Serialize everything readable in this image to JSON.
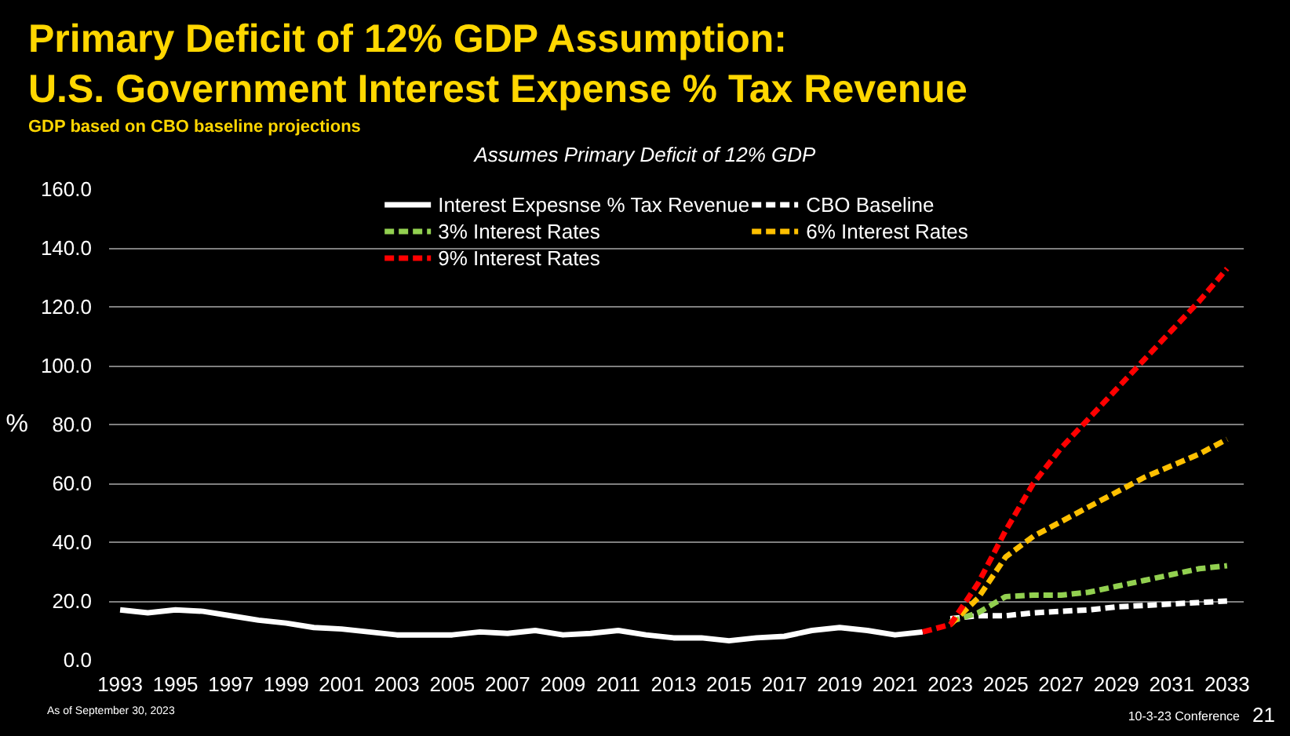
{
  "chart_data": {
    "type": "line",
    "title": "Primary Deficit of 12% GDP Assumption:",
    "subtitle": "U.S. Government Interest Expense % Tax Revenue",
    "ylabel": "%",
    "annotations": [
      "GDP based on CBO baseline projections",
      "Assumes Primary Deficit of 12% GDP",
      "As of September 30, 2023",
      "10-3-23 Conference",
      "21"
    ],
    "xlim": [
      1992.6,
      2033.6
    ],
    "xticks": [
      1993,
      1995,
      1997,
      1999,
      2001,
      2003,
      2005,
      2007,
      2009,
      2011,
      2013,
      2015,
      2017,
      2019,
      2021,
      2023,
      2025,
      2027,
      2029,
      2031,
      2033
    ],
    "ylim": [
      0,
      160
    ],
    "yticks": [
      {
        "value": 0,
        "label": "0.0"
      },
      {
        "value": 20,
        "label": "20.0"
      },
      {
        "value": 40,
        "label": "40.0"
      },
      {
        "value": 60,
        "label": "60.0"
      },
      {
        "value": 80,
        "label": "80.0"
      },
      {
        "value": 100,
        "label": "100.0"
      },
      {
        "value": 120,
        "label": "120.0"
      },
      {
        "value": 140,
        "label": "140.0"
      },
      {
        "value": 160,
        "label": "160.0"
      }
    ],
    "grid": "y",
    "legend": "top",
    "marker": "none",
    "series": [
      {
        "name": "Interest Expesnse % Tax Revenue",
        "color": "#ffffff",
        "line_style": "solid",
        "x": [
          1993,
          1994,
          1995,
          1996,
          1997,
          1998,
          1999,
          2000,
          2001,
          2002,
          2003,
          2004,
          2005,
          2006,
          2007,
          2008,
          2009,
          2010,
          2011,
          2012,
          2013,
          2014,
          2015,
          2016,
          2017,
          2018,
          2019,
          2020,
          2021,
          2022
        ],
        "values": [
          17,
          16,
          17,
          16.5,
          15,
          13.5,
          12.5,
          11,
          10.5,
          9.5,
          8.5,
          8.5,
          8.5,
          9.5,
          9,
          10,
          8.5,
          9,
          10,
          8.5,
          7.5,
          7.5,
          6.5,
          7.5,
          8,
          10,
          11,
          10,
          8.5,
          9.5
        ]
      },
      {
        "name": "CBO Baseline",
        "color": "#ffffff",
        "line_style": "dashed",
        "x": [
          2023,
          2024,
          2025,
          2026,
          2027,
          2028,
          2029,
          2030,
          2031,
          2032,
          2033
        ],
        "values": [
          14,
          15,
          15,
          16,
          16.5,
          17,
          18,
          18.5,
          19,
          19.5,
          20
        ]
      },
      {
        "name": "3% Interest Rates",
        "color": "#92d050",
        "line_style": "dashed",
        "x": [
          2023,
          2024,
          2025,
          2026,
          2027,
          2028,
          2029,
          2030,
          2031,
          2032,
          2033
        ],
        "values": [
          13,
          16,
          21.5,
          22,
          22,
          23,
          25,
          27,
          29,
          31,
          32
        ]
      },
      {
        "name": "6% Interest Rates",
        "color": "#ffc000",
        "line_style": "dashed",
        "x": [
          2023,
          2024,
          2025,
          2026,
          2027,
          2028,
          2029,
          2030,
          2031,
          2032,
          2033
        ],
        "values": [
          12,
          21,
          35,
          42,
          47,
          52,
          57,
          62,
          66,
          70,
          75
        ]
      },
      {
        "name": "9% Interest Rates",
        "color": "#ff0000",
        "line_style": "dashed",
        "x": [
          2022,
          2023,
          2024,
          2025,
          2026,
          2027,
          2028,
          2029,
          2030,
          2031,
          2032,
          2033
        ],
        "values": [
          9.5,
          12,
          26,
          44,
          60,
          72,
          82,
          92,
          102,
          112,
          122,
          133
        ]
      }
    ]
  }
}
